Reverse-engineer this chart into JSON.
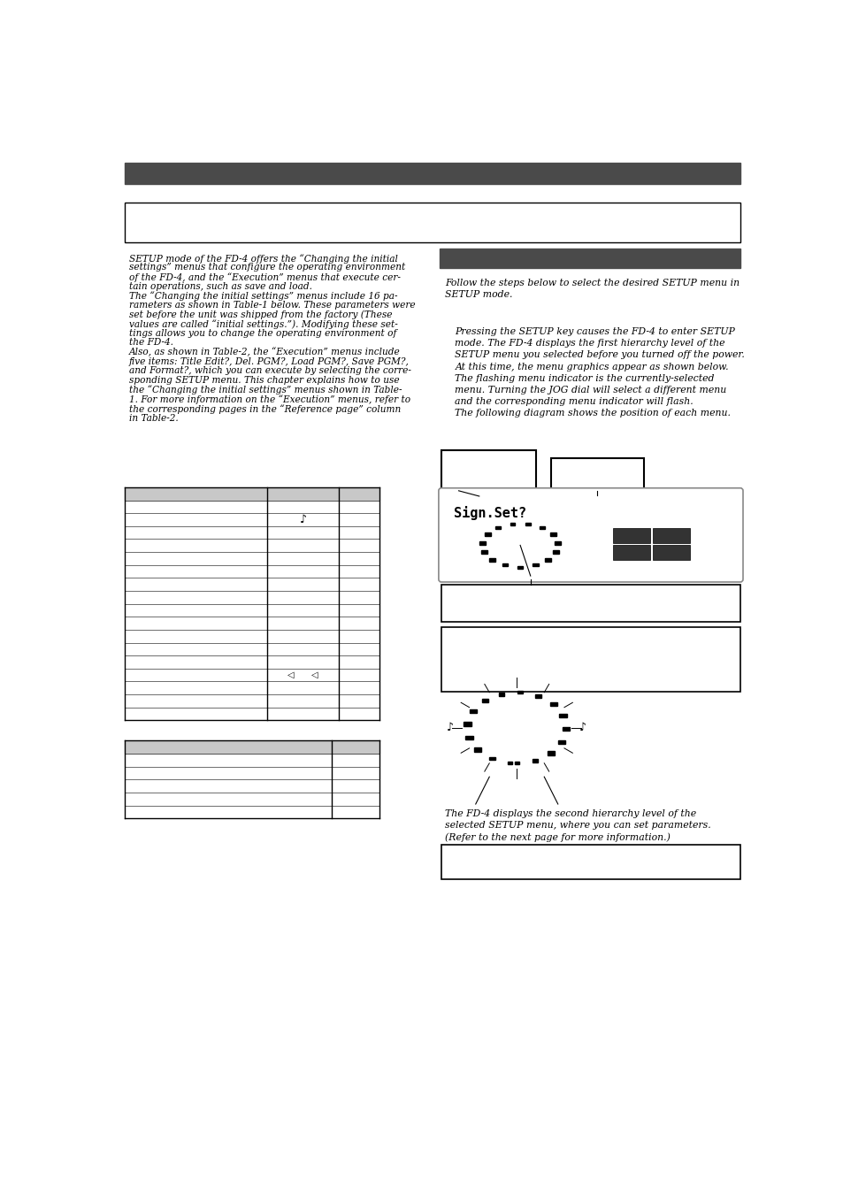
{
  "bg_color": "#ffffff",
  "header_bar_color": "#4a4a4a",
  "left_col_text": [
    "SETUP mode of the FD-4 offers the “Changing the initial",
    "settings” menus that configure the operating environment",
    "of the FD-4, and the “Execution” menus that execute cer-",
    "tain operations, such as save and load.",
    "The “Changing the initial settings” menus include 16 pa-",
    "rameters as shown in Table-1 below. These parameters were",
    "set before the unit was shipped from the factory (These",
    "values are called “initial settings.”). Modifying these set-",
    "tings allows you to change the operating environment of",
    "the FD-4.",
    "Also, as shown in Table-2, the “Execution” menus include",
    "five items: Title Edit?, Del. PGM?, Load PGM?, Save PGM?,",
    "and Format?, which you can execute by selecting the corre-",
    "sponding SETUP menu. This chapter explains how to use",
    "the “Changing the initial settings” menus shown in Table-",
    "1. For more information on the “Execution” menus, refer to",
    "the corresponding pages in the “Reference page” column",
    "in Table-2."
  ],
  "right_col_text1": "Follow the steps below to select the desired SETUP menu in\nSETUP mode.",
  "right_col_text2": "Pressing the SETUP key causes the FD-4 to enter SETUP\nmode. The FD-4 displays the first hierarchy level of the\nSETUP menu you selected before you turned off the power.\nAt this time, the menu graphics appear as shown below.\nThe flashing menu indicator is the currently-selected\nmenu. Turning the JOG dial will select a different menu\nand the corresponding menu indicator will flash.\nThe following diagram shows the position of each menu.",
  "right_col_text3": "The FD-4 displays the second hierarchy level of the\nselected SETUP menu, where you can set parameters.\n(Refer to the next page for more information.)"
}
